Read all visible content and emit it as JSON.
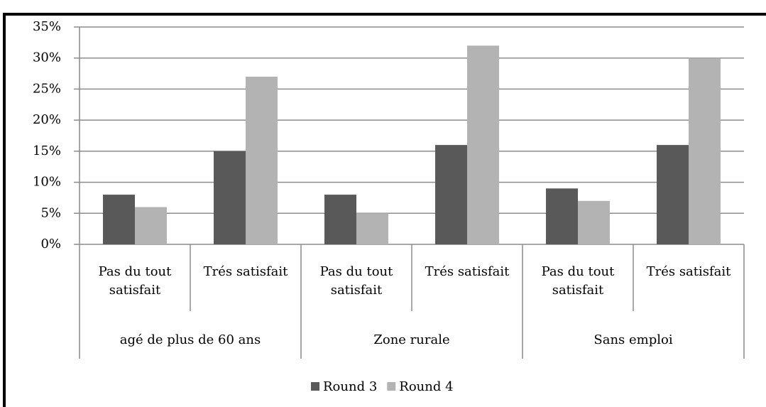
{
  "chart_data": {
    "type": "bar",
    "categories": [
      "Pas du tout satisfait",
      "Trés satisfait",
      "Pas du tout satisfait",
      "Trés satisfait",
      "Pas du tout satisfait",
      "Trés satisfait"
    ],
    "groups": [
      "agé de plus de 60 ans",
      "Zone rurale",
      "Sans emploi"
    ],
    "series": [
      {
        "name": "Round 3",
        "color": "#595959",
        "values": [
          8,
          15,
          8,
          16,
          9,
          16
        ]
      },
      {
        "name": "Round 4",
        "color": "#b3b3b3",
        "values": [
          6,
          27,
          5,
          32,
          7,
          30
        ]
      }
    ],
    "ylim": [
      0,
      35
    ],
    "yticks": [
      {
        "value": 0,
        "label": "0%"
      },
      {
        "value": 5,
        "label": "5%"
      },
      {
        "value": 10,
        "label": "10%"
      },
      {
        "value": 15,
        "label": "15%"
      },
      {
        "value": 20,
        "label": "20%"
      },
      {
        "value": 25,
        "label": "25%"
      },
      {
        "value": 30,
        "label": "30%"
      },
      {
        "value": 35,
        "label": "35%"
      }
    ],
    "grid": true,
    "legend": "bottom"
  }
}
